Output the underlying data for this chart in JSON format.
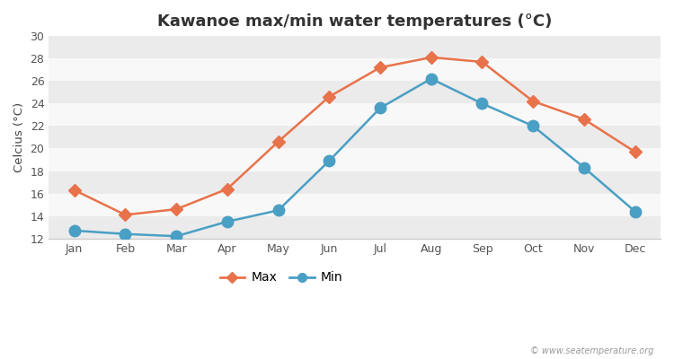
{
  "title": "Kawanoe max/min water temperatures (°C)",
  "ylabel": "Celcius (°C)",
  "months": [
    "Jan",
    "Feb",
    "Mar",
    "Apr",
    "May",
    "Jun",
    "Jul",
    "Aug",
    "Sep",
    "Oct",
    "Nov",
    "Dec"
  ],
  "max_values": [
    16.3,
    14.1,
    14.6,
    16.4,
    20.6,
    24.6,
    27.2,
    28.1,
    27.7,
    24.2,
    22.6,
    19.7
  ],
  "min_values": [
    12.7,
    12.4,
    12.2,
    13.5,
    14.5,
    18.9,
    23.6,
    26.2,
    24.0,
    22.0,
    18.3,
    14.4
  ],
  "max_color": "#e8724a",
  "min_color": "#4a9fc4",
  "fig_bg_color": "#ffffff",
  "band_light": "#ebebeb",
  "band_white": "#f8f8f8",
  "ylim": [
    12,
    30
  ],
  "yticks": [
    12,
    14,
    16,
    18,
    20,
    22,
    24,
    26,
    28,
    30
  ],
  "watermark": "© www.seatemperature.org",
  "legend_max": "Max",
  "legend_min": "Min",
  "title_fontsize": 13,
  "label_fontsize": 9.5,
  "tick_fontsize": 9,
  "max_marker_size": 7,
  "min_marker_size": 9,
  "line_width": 1.8
}
